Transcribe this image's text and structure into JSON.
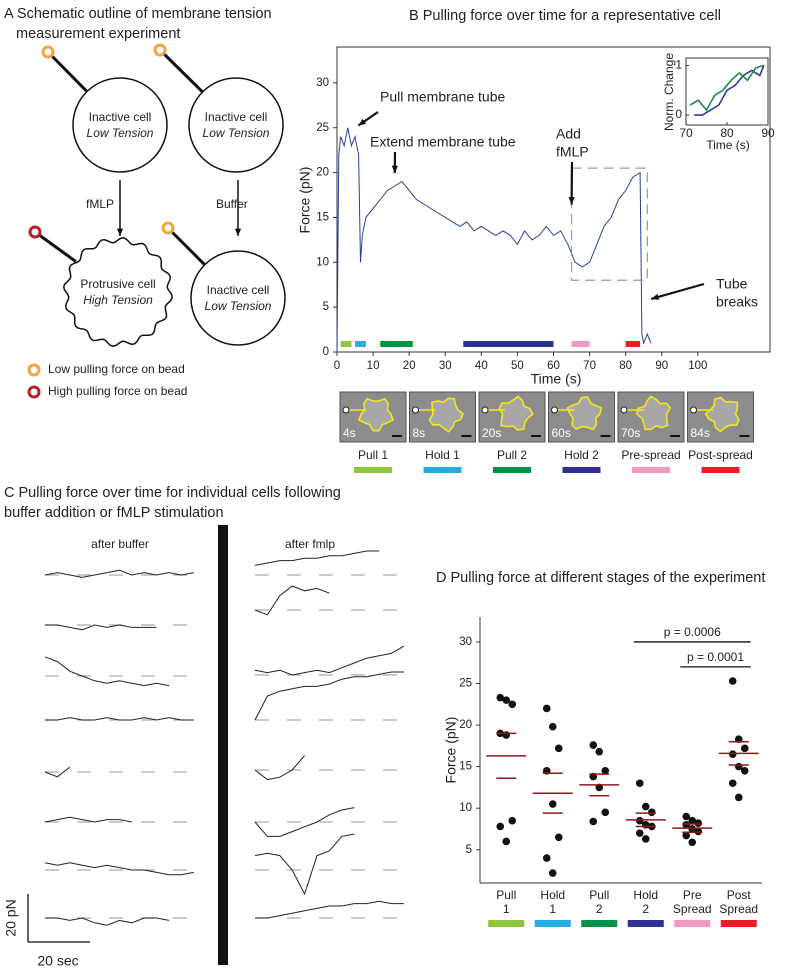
{
  "panel_a": {
    "title": [
      "A Schematic outline of membrane tension",
      "measurement experiment"
    ],
    "cells": [
      {
        "name": "Inactive cell",
        "state": "Low Tension"
      },
      {
        "name": "Inactive cell",
        "state": "Low Tension"
      },
      {
        "name": "Protrusive cell",
        "state": "High Tension"
      },
      {
        "name": "Inactive cell",
        "state": "Low Tension"
      }
    ],
    "treatments": [
      "fMLP",
      "Buffer"
    ],
    "legend": [
      {
        "label": "Low pulling force on bead",
        "color": "#f3a43a"
      },
      {
        "label": "High pulling force on bead",
        "color": "#b5202e"
      }
    ]
  },
  "chart_data": [
    {
      "type": "line",
      "title": "B Pulling force over time for a representative cell",
      "x_label": "Time (s)",
      "y_label": "Force (pN)",
      "xlim": [
        0,
        120
      ],
      "ylim": [
        0,
        34
      ],
      "xticks": [
        0,
        10,
        20,
        30,
        40,
        50,
        60,
        70,
        80,
        90,
        100
      ],
      "yticks": [
        0,
        5,
        10,
        15,
        20,
        25,
        30
      ],
      "series": [
        {
          "color": "#2b3f9a",
          "x": [
            0,
            0.5,
            1,
            2,
            3,
            4,
            5,
            6,
            6.5,
            7,
            8,
            10,
            12,
            14,
            16,
            18,
            20,
            22,
            24,
            26,
            28,
            30,
            32,
            34,
            36,
            38,
            40,
            42,
            44,
            46,
            48,
            50,
            52,
            54,
            56,
            58,
            60,
            62,
            64,
            66,
            68,
            70,
            72,
            74,
            76,
            78,
            80,
            82,
            84,
            84.5,
            85,
            86,
            87
          ],
          "values": [
            0,
            22,
            24,
            23,
            25,
            23,
            24,
            22,
            10,
            13,
            15,
            16,
            17,
            18,
            18.5,
            19,
            18,
            17,
            16.5,
            16,
            15.5,
            15,
            14.5,
            14,
            14.5,
            13.5,
            14,
            13.5,
            13,
            13.5,
            13,
            12,
            13.5,
            12.5,
            13,
            14,
            13,
            13.5,
            12,
            10,
            9.5,
            10,
            12,
            14,
            15,
            17,
            18,
            19.5,
            20,
            2,
            1,
            2,
            1
          ]
        }
      ],
      "annotations": [
        {
          "lines": [
            "Pull membrane tube"
          ],
          "point": [
            5,
            25
          ]
        },
        {
          "lines": [
            "Extend membrane tube"
          ],
          "point": [
            16,
            19.5
          ]
        },
        {
          "lines": [
            "Add",
            "fMLP"
          ],
          "point": [
            65,
            16
          ]
        },
        {
          "lines": [
            "Tube",
            "breaks"
          ],
          "point": [
            86,
            5.8
          ]
        }
      ],
      "highlight_box": {
        "x": [
          65,
          86
        ],
        "y": [
          8,
          20.5
        ]
      },
      "stages": [
        {
          "name": "Pull 1",
          "color": "#8dc63f",
          "start": 1,
          "end": 4,
          "snapshot": "4s"
        },
        {
          "name": "Hold 1",
          "color": "#29abe2",
          "start": 5,
          "end": 8,
          "snapshot": "8s"
        },
        {
          "name": "Pull 2",
          "color": "#009245",
          "start": 12,
          "end": 21,
          "snapshot": "20s"
        },
        {
          "name": "Hold 2",
          "color": "#2e3192",
          "start": 35,
          "end": 60,
          "snapshot": "60s"
        },
        {
          "name": "Pre-spread",
          "color": "#f49ac1",
          "start": 65,
          "end": 70,
          "snapshot": "70s"
        },
        {
          "name": "Post-spread",
          "color": "#ed1c24",
          "start": 80,
          "end": 84,
          "snapshot": "84s"
        }
      ]
    },
    {
      "type": "line",
      "x_label": "Time (s)",
      "y_label": "Norm. Change",
      "xlim": [
        70,
        90
      ],
      "ylim": [
        -0.2,
        1.15
      ],
      "xticks": [
        70,
        80,
        90
      ],
      "yticks": [
        0,
        1
      ],
      "series": [
        {
          "color": "#2b3f9a",
          "x": [
            72,
            74,
            76,
            78,
            80,
            82,
            84,
            86,
            88,
            89
          ],
          "values": [
            0,
            0,
            0.1,
            0.2,
            0.5,
            0.6,
            0.8,
            0.9,
            0.8,
            1
          ]
        },
        {
          "color": "#1e8a4a",
          "x": [
            71,
            73,
            75,
            77,
            79,
            81,
            83,
            85,
            87,
            89
          ],
          "values": [
            0.2,
            0.3,
            0.1,
            0.4,
            0.5,
            0.7,
            0.85,
            0.7,
            0.95,
            1
          ]
        }
      ]
    },
    {
      "type": "scatter",
      "title": "D Pulling force at different stages of the experiment",
      "y_label": "Force (pN)",
      "ylim": [
        1,
        33
      ],
      "yticks": [
        5,
        10,
        15,
        20,
        25,
        30
      ],
      "categories": [
        [
          "Pull",
          "1"
        ],
        [
          "Hold",
          "1"
        ],
        [
          "Pull",
          "2"
        ],
        [
          "Hold",
          "2"
        ],
        [
          "Pre",
          "Spread"
        ],
        [
          "Post",
          "Spread"
        ]
      ],
      "colors": [
        "#8dc63f",
        "#29abe2",
        "#009245",
        "#2e3192",
        "#f49ac1",
        "#ed1c24"
      ],
      "points": [
        [
          23.3,
          23,
          22.5,
          19,
          18.8,
          8.5,
          7.8,
          6
        ],
        [
          22,
          19.8,
          17.2,
          14.5,
          10.5,
          6.5,
          4,
          2.2
        ],
        [
          17.6,
          16.8,
          14.5,
          13.8,
          12.5,
          9.5,
          8.4
        ],
        [
          13,
          10.2,
          9.5,
          8.5,
          8,
          7.8,
          7,
          6.3
        ],
        [
          9,
          8.5,
          8.2,
          8,
          7.5,
          7.2,
          6.7,
          5.9
        ],
        [
          25.3,
          18.3,
          17.2,
          16.5,
          15,
          14.5,
          13,
          11.3
        ]
      ],
      "means": [
        16.3,
        11.8,
        12.8,
        8.6,
        7.6,
        16.6
      ],
      "sems": [
        2.7,
        2.4,
        1.3,
        0.8,
        0.5,
        1.4
      ],
      "mean_color": "#8b1a1a",
      "significance": [
        {
          "text": "p = 0.0006",
          "from": 3,
          "to": 5,
          "y": 30
        },
        {
          "text": "p = 0.0001",
          "from": 4,
          "to": 5,
          "y": 27
        }
      ]
    }
  ],
  "panel_c": {
    "title": [
      "C Pulling force over time for individual cells following",
      "buffer addition or fMLP stimulation"
    ],
    "t": [
      0,
      4,
      8,
      12,
      16,
      20,
      24,
      28,
      32,
      36,
      40,
      44,
      48
    ],
    "after_buffer": {
      "label": "after buffer",
      "traces": [
        [
          0,
          1,
          0,
          -1,
          0,
          1,
          2,
          0,
          1,
          0,
          1,
          0,
          1
        ],
        [
          0,
          0,
          -1,
          -2,
          0,
          -1,
          0,
          -1,
          -1,
          -1,
          null,
          null,
          null
        ],
        [
          8,
          6,
          2,
          0,
          -2,
          -3,
          -2,
          -3,
          -4,
          -3,
          -4,
          null,
          null
        ],
        [
          0,
          0,
          1,
          0,
          0,
          1,
          0,
          0,
          1,
          0,
          1,
          0,
          0
        ],
        [
          0,
          -2,
          2,
          null,
          null,
          null,
          null,
          null,
          null,
          null,
          null,
          null,
          null
        ],
        [
          0,
          1,
          2,
          1,
          0,
          1,
          1,
          0,
          null,
          null,
          null,
          null,
          null
        ],
        [
          3,
          2,
          3,
          2,
          1,
          2,
          1,
          0,
          0,
          -1,
          -2,
          -2,
          -1
        ],
        [
          0,
          0,
          -1,
          0,
          -2,
          -3,
          -1,
          -2,
          0,
          0,
          -1,
          null,
          null
        ]
      ]
    },
    "after_fmlp": {
      "label": "after fmlp",
      "traces": [
        [
          4,
          5,
          6,
          6,
          7,
          7,
          8,
          8,
          9,
          10,
          10,
          null,
          null
        ],
        [
          0,
          -2,
          6,
          10,
          8,
          9,
          7,
          null,
          null,
          null,
          null,
          null,
          null
        ],
        [
          2,
          1,
          2,
          0,
          1,
          2,
          1,
          3,
          5,
          7,
          8,
          9,
          12
        ],
        [
          0,
          10,
          12,
          13,
          14,
          14,
          15,
          17,
          18,
          18,
          19,
          20,
          20
        ],
        [
          0,
          -4,
          -3,
          0,
          6,
          null,
          null,
          null,
          null,
          null,
          null,
          null,
          null
        ],
        [
          0,
          -6,
          -6,
          -4,
          -2,
          0,
          3,
          5,
          6,
          null,
          null,
          null,
          null
        ],
        [
          6,
          7,
          6,
          0,
          -10,
          6,
          8,
          14,
          15,
          null,
          null,
          null,
          null
        ],
        [
          0,
          0,
          1,
          2,
          3,
          4,
          5,
          5,
          6,
          6,
          7,
          6,
          6
        ]
      ]
    },
    "scale_bar": {
      "force": 20,
      "force_label": "20 pN",
      "time": 20,
      "time_label": "20 sec"
    }
  }
}
